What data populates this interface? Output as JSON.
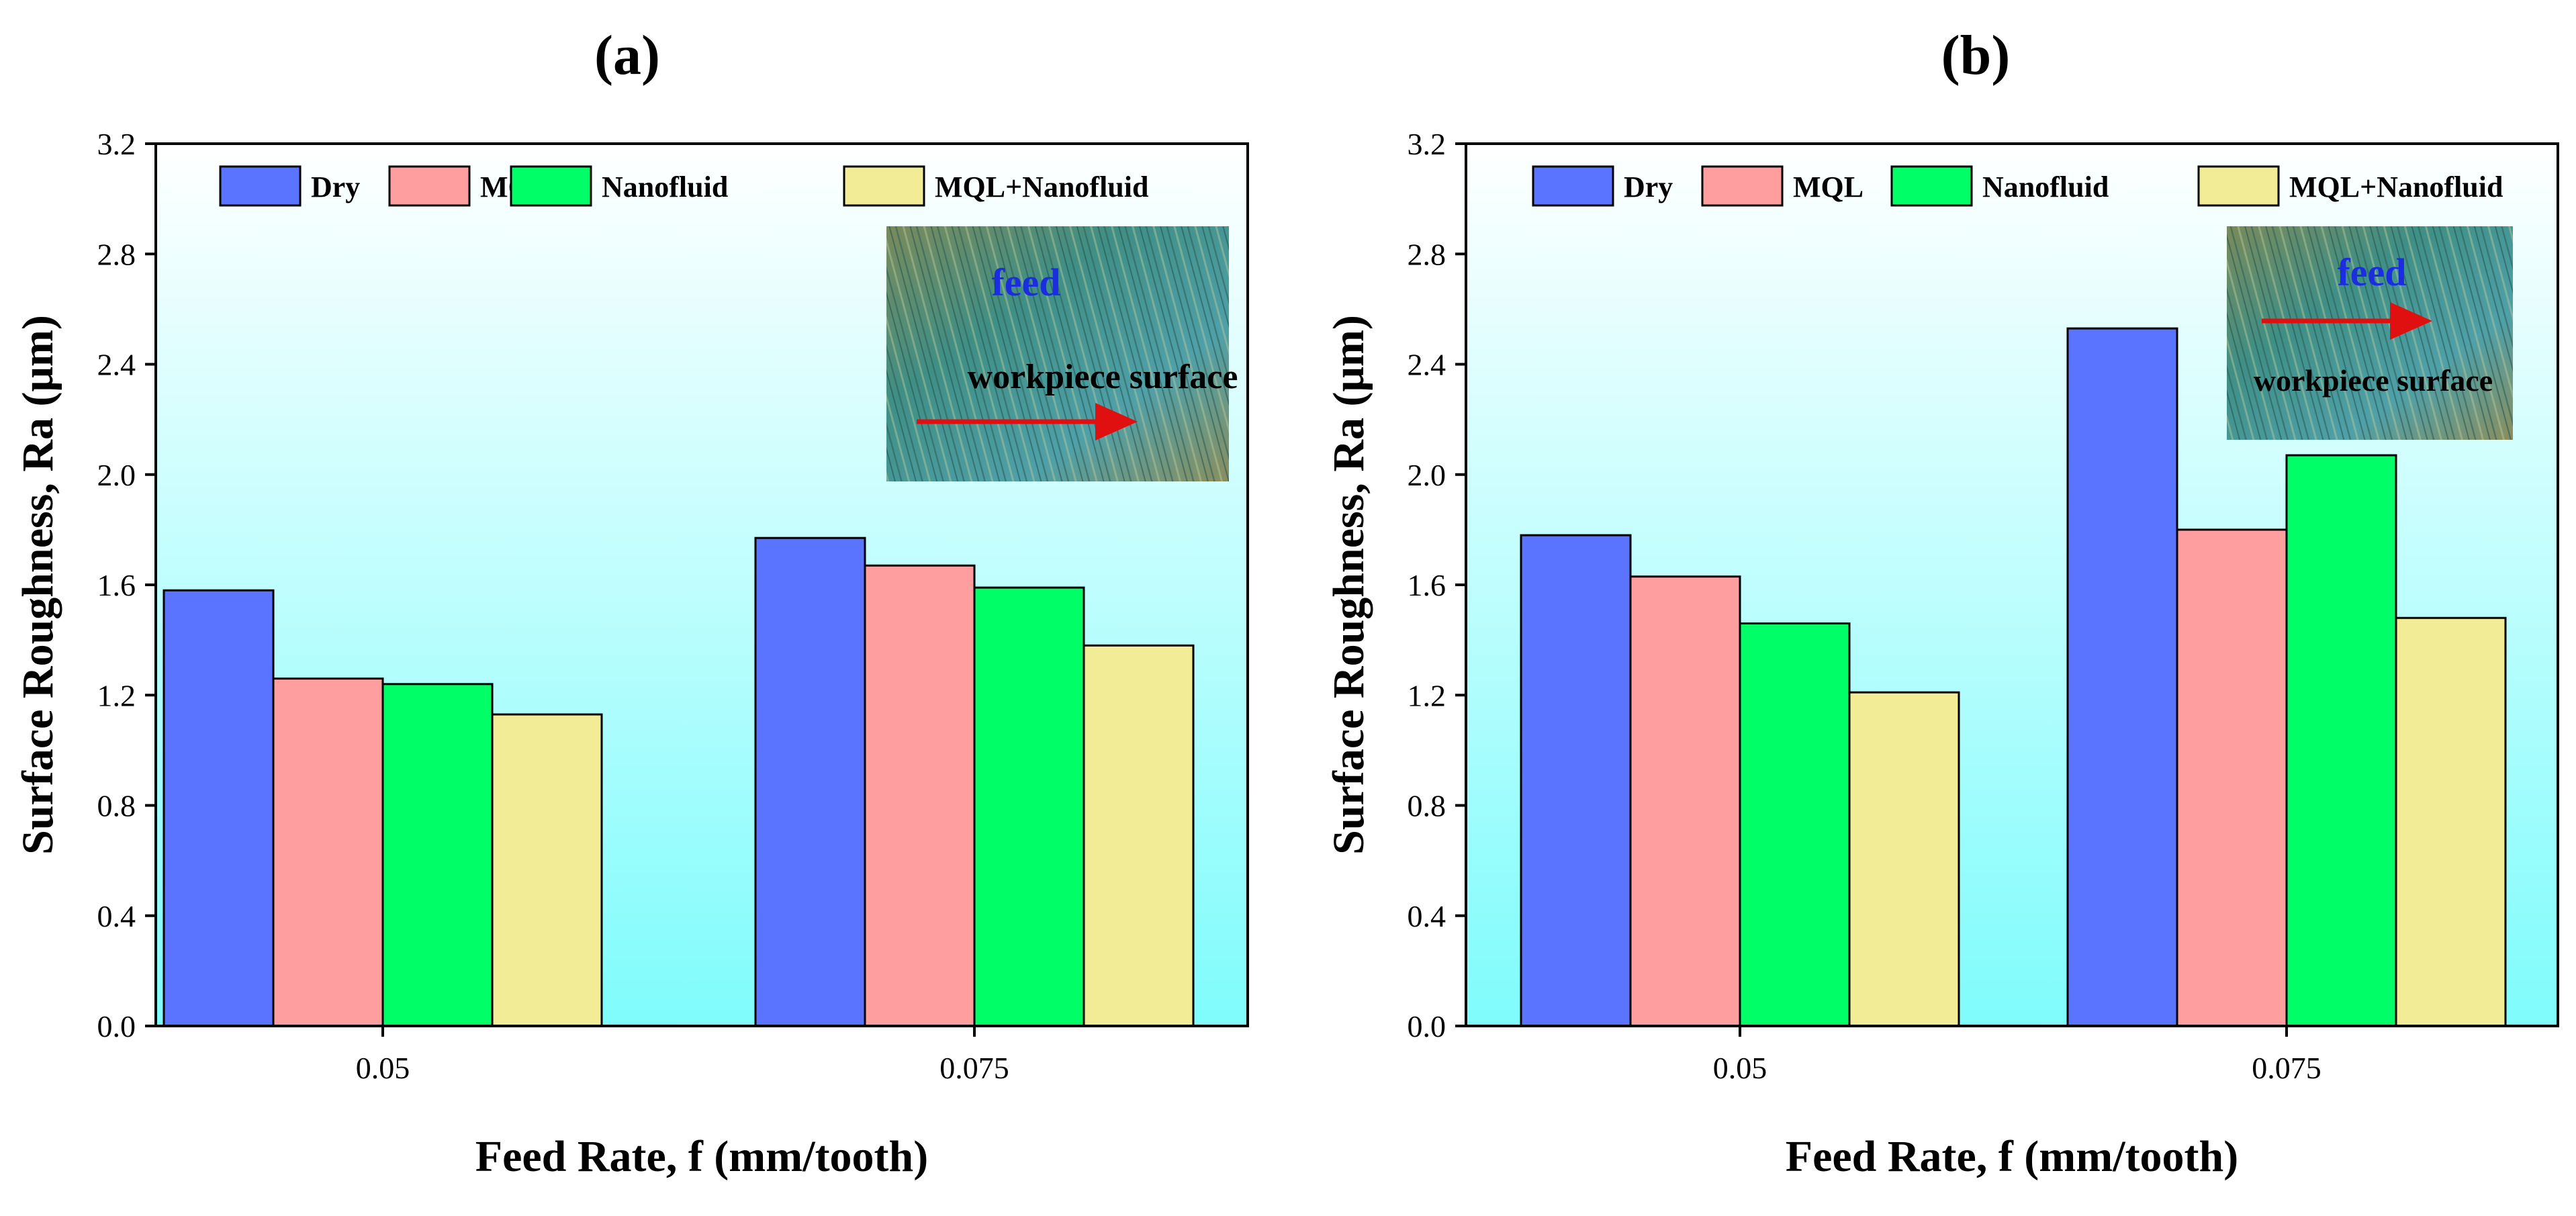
{
  "colors": {
    "Dry": "#5a74ff",
    "MQL": "#ff9e9e",
    "Nanofluid": "#00ff66",
    "MQL+Nanofluid": "#f2ec96",
    "bg_top": "#ffffff",
    "bg_bottom": "#7ffcfc",
    "arrow": "#e01010"
  },
  "chart_data": [
    {
      "type": "bar",
      "title": "(a)",
      "xlabel": "Feed Rate, f (mm/tooth)",
      "ylabel": "Surface Roughness, Ra (μm)",
      "ylim": [
        0,
        3.2
      ],
      "yticks": [
        "0.0",
        "0.4",
        "0.8",
        "1.2",
        "1.6",
        "2.0",
        "2.4",
        "2.8",
        "3.2"
      ],
      "categories": [
        "0.05",
        "0.075"
      ],
      "series": [
        {
          "name": "Dry",
          "values": [
            1.58,
            1.77
          ]
        },
        {
          "name": "MQL",
          "values": [
            1.26,
            1.67
          ]
        },
        {
          "name": "Nanofluid",
          "values": [
            1.24,
            1.59
          ]
        },
        {
          "name": "MQL+Nanofluid",
          "values": [
            1.13,
            1.38
          ]
        }
      ],
      "legend": "top",
      "inset": {
        "feed_label": "feed",
        "surface_label": "workpiece surface"
      }
    },
    {
      "type": "bar",
      "title": "(b)",
      "xlabel": "Feed Rate, f (mm/tooth)",
      "ylabel": "Surface Roughness, Ra (μm)",
      "ylim": [
        0,
        3.2
      ],
      "yticks": [
        "0.0",
        "0.4",
        "0.8",
        "1.2",
        "1.6",
        "2.0",
        "2.4",
        "2.8",
        "3.2"
      ],
      "categories": [
        "0.05",
        "0.075"
      ],
      "series": [
        {
          "name": "Dry",
          "values": [
            1.78,
            2.53
          ]
        },
        {
          "name": "MQL",
          "values": [
            1.63,
            1.8
          ]
        },
        {
          "name": "Nanofluid",
          "values": [
            1.46,
            2.07
          ]
        },
        {
          "name": "MQL+Nanofluid",
          "values": [
            1.21,
            1.48
          ]
        }
      ],
      "legend": "top",
      "inset": {
        "feed_label": "feed",
        "surface_label": "workpiece surface"
      }
    }
  ]
}
